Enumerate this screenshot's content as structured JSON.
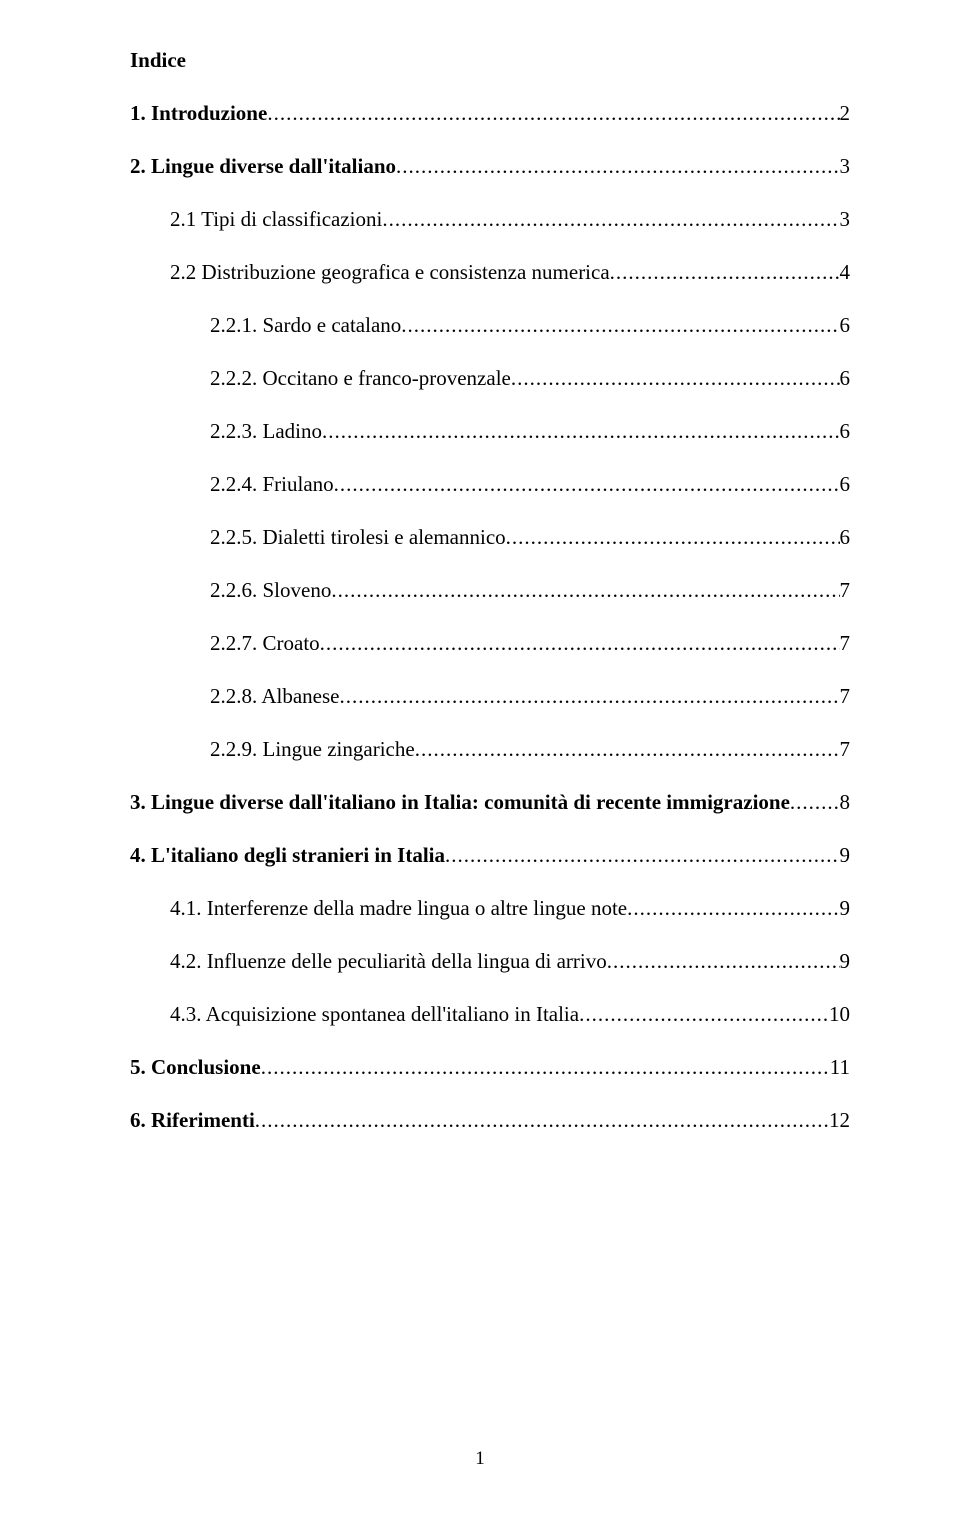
{
  "title": "Indice",
  "entries": [
    {
      "label": "1. Introduzione",
      "page": "2",
      "bold": true,
      "indent": 0
    },
    {
      "label": "2. Lingue diverse dall'italiano",
      "page": "3",
      "bold": true,
      "indent": 0
    },
    {
      "label": "2.1 Tipi di classificazioni",
      "page": "3",
      "bold": false,
      "indent": 1
    },
    {
      "label": "2.2 Distribuzione geografica e consistenza numerica",
      "page": "4",
      "bold": false,
      "indent": 1
    },
    {
      "label": "2.2.1. Sardo e catalano",
      "page": "6",
      "bold": false,
      "indent": 2
    },
    {
      "label": "2.2.2. Occitano e franco-provenzale",
      "page": "6",
      "bold": false,
      "indent": 2
    },
    {
      "label": "2.2.3. Ladino",
      "page": "6",
      "bold": false,
      "indent": 2
    },
    {
      "label": "2.2.4. Friulano",
      "page": "6",
      "bold": false,
      "indent": 2
    },
    {
      "label": "2.2.5. Dialetti tirolesi e alemannico",
      "page": "6",
      "bold": false,
      "indent": 2
    },
    {
      "label": "2.2.6. Sloveno",
      "page": "7",
      "bold": false,
      "indent": 2
    },
    {
      "label": "2.2.7. Croato",
      "page": "7",
      "bold": false,
      "indent": 2
    },
    {
      "label": "2.2.8. Albanese",
      "page": "7",
      "bold": false,
      "indent": 2
    },
    {
      "label": "2.2.9. Lingue zingariche",
      "page": "7",
      "bold": false,
      "indent": 2
    },
    {
      "label": "3. Lingue diverse dall'italiano in Italia: comunità di recente immigrazione",
      "page": "8",
      "bold": true,
      "indent": 0
    },
    {
      "label": "4. L'italiano degli stranieri in Italia",
      "page": "9",
      "bold": true,
      "indent": 0
    },
    {
      "label": "4.1. Interferenze della madre lingua o altre lingue note",
      "page": "9",
      "bold": false,
      "indent": 1
    },
    {
      "label": "4.2. Influenze delle peculiarità della lingua di arrivo",
      "page": "9",
      "bold": false,
      "indent": 1
    },
    {
      "label": "4.3. Acquisizione spontanea dell'italiano in Italia",
      "page": "10",
      "bold": false,
      "indent": 1
    },
    {
      "label": "5. Conclusione",
      "page": "11",
      "bold": true,
      "indent": 0
    },
    {
      "label": "6. Riferimenti",
      "page": "12",
      "bold": true,
      "indent": 0
    }
  ],
  "pageNumber": "1"
}
